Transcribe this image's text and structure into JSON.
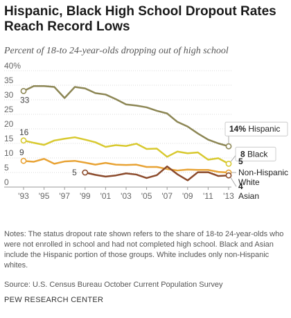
{
  "title": "Hispanic, Black High School Dropout Rates Reach Record Lows",
  "subtitle": "Percent of 18-to 24-year-olds dropping out of high school",
  "notes": "Notes: The status dropout rate shown refers to the share of 18-to 24-year-olds who were not enrolled in school and had not completed high school.  Black and Asian include the Hispanic portion of those groups.  White includes only non-Hispanic whites.",
  "source": "Source: U.S. Census Bureau October Current Population Survey",
  "org": "PEW RESEARCH CENTER",
  "chart_data": {
    "type": "line",
    "x": [
      1993,
      1994,
      1995,
      1996,
      1997,
      1998,
      1999,
      2000,
      2001,
      2002,
      2003,
      2004,
      2005,
      2006,
      2007,
      2008,
      2009,
      2010,
      2011,
      2012,
      2013
    ],
    "xticks": [
      1993,
      1995,
      1997,
      1999,
      2001,
      2003,
      2005,
      2007,
      2009,
      2011,
      2013
    ],
    "xtick_labels": [
      "'93",
      "'95",
      "'97",
      "'99",
      "'01",
      "'03",
      "'05",
      "'07",
      "'09",
      "'11",
      "'13"
    ],
    "ylim": [
      0,
      40
    ],
    "yticks": [
      0,
      5,
      10,
      15,
      20,
      25,
      30,
      35,
      40
    ],
    "ytick_labels": [
      "0",
      "5",
      "10",
      "15",
      "20",
      "25",
      "30",
      "35",
      "40%"
    ],
    "grid": true,
    "series": [
      {
        "name": "Hispanic",
        "color": "#8c8654",
        "values": [
          33,
          34.7,
          34.7,
          34.4,
          30.6,
          34.4,
          33.9,
          32.3,
          31.8,
          30.2,
          28.4,
          28.0,
          27.4,
          26.2,
          25.3,
          22.4,
          20.8,
          18.4,
          16.3,
          15.0,
          14.0
        ],
        "start_label": "33",
        "end_label_value": "14%",
        "end_label_name": "Hispanic"
      },
      {
        "name": "Black",
        "color": "#d8c92f",
        "values": [
          16,
          15.2,
          14.5,
          16.0,
          16.6,
          17.1,
          16.3,
          15.4,
          13.8,
          14.4,
          14.1,
          14.9,
          13.1,
          13.2,
          10.4,
          12.2,
          11.6,
          11.9,
          9.4,
          9.9,
          8.0
        ],
        "start_label": "16",
        "end_label_value": "8",
        "end_label_name": "Black"
      },
      {
        "name": "Non-Hispanic White",
        "color": "#e8a335",
        "values": [
          9,
          8.7,
          9.7,
          8.0,
          8.8,
          9.0,
          8.4,
          7.7,
          8.3,
          7.7,
          7.6,
          7.7,
          6.9,
          6.9,
          6.2,
          5.7,
          6.0,
          5.9,
          5.9,
          5.2,
          5.0
        ],
        "start_label": "9",
        "end_label_value": "5",
        "end_label_name": "Non-Hispanic White"
      },
      {
        "name": "Asian",
        "color": "#8b4a2b",
        "start_year": 1999,
        "values": [
          null,
          null,
          null,
          null,
          null,
          null,
          5.0,
          4.2,
          3.6,
          4.0,
          4.7,
          4.3,
          3.1,
          4.1,
          7.1,
          4.4,
          2.3,
          5.1,
          5.1,
          3.8,
          4.0
        ],
        "start_label": "5",
        "end_label_value": "4",
        "end_label_name": "Asian"
      }
    ]
  }
}
